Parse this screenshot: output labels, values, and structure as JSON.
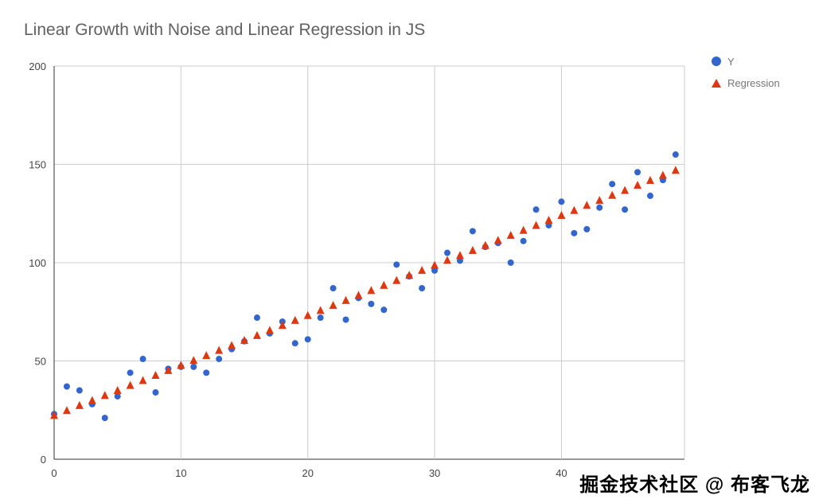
{
  "title": "Linear Growth with Noise and Linear Regression in JS",
  "watermark": "掘金技术社区 @ 布客飞龙",
  "legend": {
    "items": [
      {
        "label": "Y",
        "marker": "circle",
        "color": "#3366cc"
      },
      {
        "label": "Regression",
        "marker": "triangle",
        "color": "#dc3912"
      }
    ]
  },
  "chart_data": {
    "type": "scatter",
    "title": "Linear Growth with Noise and Linear Regression in JS",
    "xlabel": "",
    "ylabel": "",
    "xlim": [
      0,
      49.7
    ],
    "ylim": [
      0,
      200
    ],
    "x_ticks": [
      0,
      10,
      20,
      30,
      40
    ],
    "y_ticks": [
      0,
      50,
      100,
      150,
      200
    ],
    "grid": true,
    "legend_position": "right-top",
    "x": [
      0,
      1,
      2,
      3,
      4,
      5,
      6,
      7,
      8,
      9,
      10,
      11,
      12,
      13,
      14,
      15,
      16,
      17,
      18,
      19,
      20,
      21,
      22,
      23,
      24,
      25,
      26,
      27,
      28,
      29,
      30,
      31,
      32,
      33,
      34,
      35,
      36,
      37,
      38,
      39,
      40,
      41,
      42,
      43,
      44,
      45,
      46,
      47,
      48,
      49
    ],
    "series": [
      {
        "name": "Y",
        "marker": "circle",
        "color": "#3366cc",
        "values": [
          23,
          37,
          35,
          28,
          21,
          32,
          44,
          51,
          34,
          46,
          47,
          47,
          44,
          51,
          56,
          60,
          72,
          64,
          70,
          59,
          61,
          72,
          87,
          71,
          82,
          79,
          76,
          99,
          93,
          87,
          96,
          105,
          101,
          116,
          108,
          110,
          100,
          111,
          127,
          119,
          131,
          115,
          117,
          128,
          140,
          127,
          146,
          134,
          142,
          155
        ]
      },
      {
        "name": "Regression",
        "marker": "triangle",
        "color": "#dc3912",
        "values": [
          22.3,
          24.8,
          27.4,
          29.9,
          32.5,
          35.0,
          37.6,
          40.1,
          42.7,
          45.2,
          47.8,
          50.3,
          52.8,
          55.4,
          57.9,
          60.5,
          63.0,
          65.6,
          68.1,
          70.7,
          73.2,
          75.7,
          78.3,
          80.8,
          83.4,
          85.9,
          88.5,
          91.0,
          93.6,
          96.1,
          98.7,
          101.2,
          103.7,
          106.3,
          108.8,
          111.4,
          113.9,
          116.5,
          119.0,
          121.6,
          124.1,
          126.6,
          129.2,
          131.7,
          134.3,
          136.8,
          139.4,
          141.9,
          144.5,
          147.0
        ]
      }
    ],
    "colors": {
      "grid": "#cccccc",
      "baseline": "#333333",
      "tick_label": "#444444"
    }
  }
}
